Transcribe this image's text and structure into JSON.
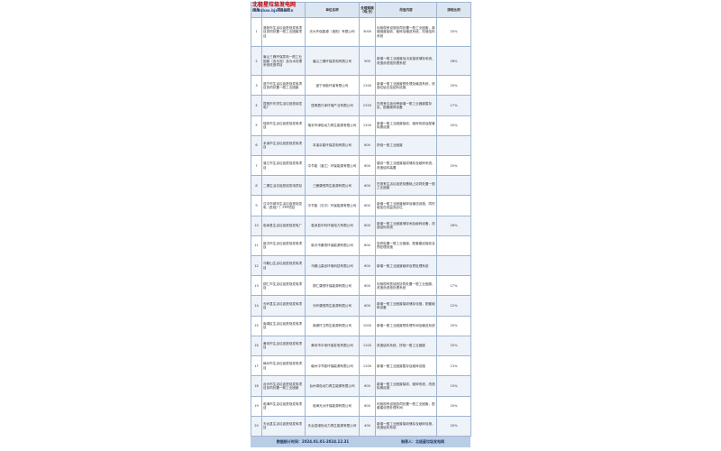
{
  "logo": {
    "name": "北极星垃圾发电网",
    "url": "huanbao.bjx.com.cn"
  },
  "table": {
    "header": [
      "序号",
      "项目名称",
      "单位名称",
      "处理规模（吨/日）",
      "改造内容",
      "掺烧比例"
    ],
    "rows": [
      [
        "1",
        "洛阳市生活垃圾焚烧发电项目协同处置一般工业固废项目",
        "光大环保能源（洛阳）有限公司",
        "3000",
        "利用现有设施协同处置一般工业固废，新增固废接收、破碎及输送系统，改造给料系统",
        "20%"
      ],
      [
        "2",
        "眉山三峰环保发电一般工业固废（含污泥）及污水处理系统改造项目",
        "眉山三峰环保发电有限公司",
        "900",
        "新增一般工业固废及污泥接收储存系统，改造渗滤液处理系统",
        "28%"
      ],
      [
        "3",
        "遂宁市生活垃圾焚烧发电项目协同处置一般工业固废",
        "遂宁深能环保有限公司",
        "1200",
        "新增一般工业固废预处理及输送系统，改造垃圾仓及给料设施",
        "20%"
      ],
      [
        "4",
        "昆明市东郊生活垃圾焚烧发电厂",
        "昆明昌兴泽环境产业有限公司",
        "2250",
        "在现有垃圾仓旁新增一般工业固废暂存区，配套破碎设备",
        "17%"
      ],
      [
        "5",
        "瑞安市生活垃圾焚烧发电项目",
        "瑞安市绿色动力再生能源有限公司",
        "1200",
        "新增一般工业固废接收、破碎系统及配套除臭设施",
        "20%"
      ],
      [
        "6",
        "本溪市生活垃圾焚烧发电项目",
        "本溪京能环保发电有限公司",
        "600",
        "掺烧一般工业固废",
        ""
      ],
      [
        "7",
        "湛江市生活垃圾焚烧发电项目",
        "中节能（湛江）环保能源有限公司",
        "600",
        "建设一般工业固废接收储存及破碎系统，改造给料装置",
        "25%"
      ],
      [
        "8",
        "二期生活垃圾焚烧发电项目",
        "三穗康恒再生能源有限公司",
        "600",
        "在现有生活垃圾焚烧基础上协同处置一般工业固废",
        ""
      ],
      [
        "9",
        "汉中市城市生活垃圾焚烧发电（焚烧厂）PPP项目",
        "中节能（汉中）环保能源有限公司",
        "600",
        "新增一般工业固废破碎及输送设施，同时增加在线监测点位",
        ""
      ],
      [
        "10",
        "临泽县生活垃圾焚烧发电厂",
        "临泽县中科环保电力有限公司",
        "600",
        "新增一般工业固废储存间及破碎设备，改造给料系统",
        "28%"
      ],
      [
        "11",
        "新沂市生活垃圾焚烧发电项目",
        "新沂市康恒环保能源有限公司",
        "800",
        "协同处置一般工业固废，配套建设接收及预处理设施",
        ""
      ],
      [
        "12",
        "马鞍山生活垃圾焚烧发电项目",
        "马鞍山高创环境科技有限公司",
        "600",
        "新增一般工业固废破碎及预处理系统",
        ""
      ],
      [
        "13",
        "铜仁市生活垃圾焚烧发电项目",
        "铜仁康恒环保能源有限公司",
        "600",
        "利用现有焚烧线协同处置一般工业固废，改造渗滤液处理系统",
        "17%"
      ],
      [
        "14",
        "长岭县生活垃圾焚烧发电项目",
        "长岭康恒再生能源有限公司",
        "600",
        "新增一般工业固废接收储存设施，配套破碎设备",
        "12%"
      ],
      [
        "15",
        "南湖区生活垃圾焚烧发电项目",
        "南湖环卫再生能源有限公司",
        "1000",
        "新增一般工业固废预处理车间及输送系统",
        "20%"
      ],
      [
        "16",
        "黄冈市生活垃圾焚烧发电项目",
        "黄冈市中电环保发电有限公司",
        "1200",
        "改造给料系统，掺烧一般工业固废",
        "20%"
      ],
      [
        "17",
        "赣州市生活垃圾焚烧发电项目",
        "赣州中节能环保能源有限公司",
        "1200",
        "新增一般工业固废暂存及破碎设施",
        "13%"
      ],
      [
        "18",
        "台州市生活垃圾焚烧发电项目协同处置一般工业固废",
        "台州绿色动力再生能源有限公司",
        "600",
        "新增一般工业固废接收、破碎系统，改造除臭设施",
        "15%"
      ],
      [
        "19",
        "临海市生活垃圾焚烧发电项目",
        "临海光大环保能源有限公司",
        "600",
        "利用现有设施协同处置一般工业固废，配套建设预处理车间",
        "20%"
      ],
      [
        "20",
        "天台县生活垃圾焚烧发电项目",
        "天台县绿色动力再生能源有限公司",
        "400",
        "新增一般工业固废接收储存及破碎设施，改造给料系统",
        "20%"
      ]
    ]
  },
  "footer": {
    "period": "数据统计时间：2024.01.01-2024.12.31",
    "author": "制表人：北极星垃圾发电网"
  }
}
